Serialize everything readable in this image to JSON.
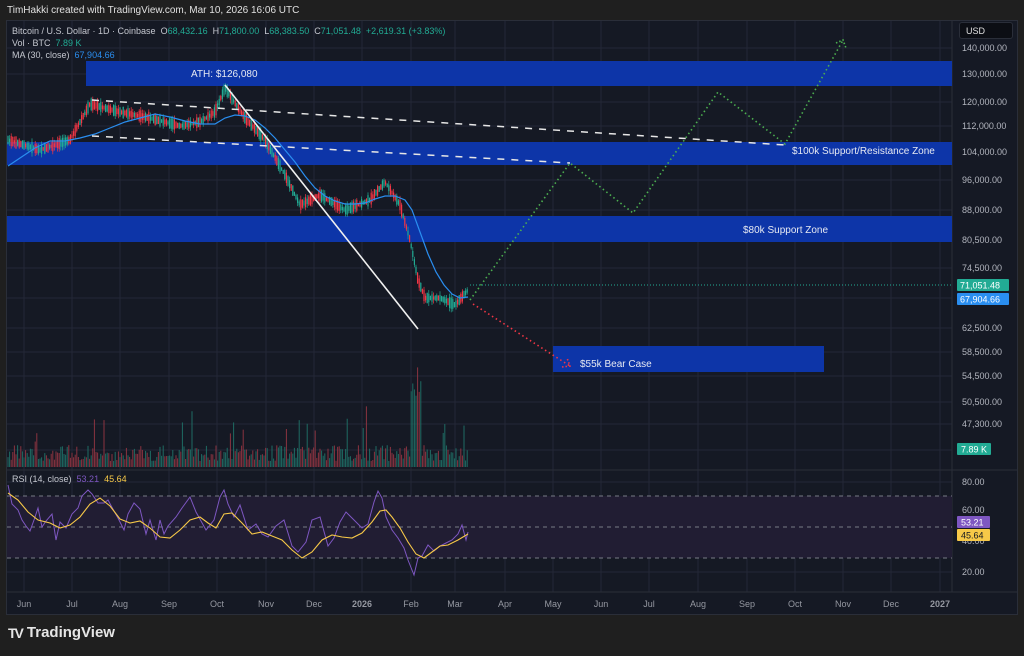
{
  "credit": "TimHakki created with TradingView.com, Mar 10, 2026 16:06 UTC",
  "legend": {
    "symbol": "Bitcoin / U.S. Dollar · 1D · Coinbase",
    "o_label": "O",
    "o": "68,432.16",
    "h_label": "H",
    "h": "71,800.00",
    "l_label": "L",
    "l": "68,383.50",
    "c_label": "C",
    "c": "71,051.48",
    "change": "+2,619.31 (+3.83%)",
    "vol_label": "Vol · BTC",
    "vol": "7.89 K",
    "ma_label": "MA (30, close)",
    "ma": "67,904.66"
  },
  "rsi_legend": {
    "label": "RSI (14, close)",
    "rsi": "53.21",
    "rsi_ma": "45.64"
  },
  "currency_button": "USD",
  "price_badges": {
    "close": "71,051.48",
    "ma": "67,904.66",
    "vol": "7.89 K",
    "rsi": "53.21",
    "rsi_ma": "45.64"
  },
  "colors": {
    "background": "#151924",
    "zone": "#0d35a8",
    "up": "#22ab94",
    "down": "#f23645",
    "ma": "#2a8ef0",
    "rsi": "#7e57c2",
    "rsi_ma": "#f7c948",
    "projection_bull": "#4caf50",
    "projection_bear": "#f23645"
  },
  "brand": "TradingView",
  "chart_data": {
    "type": "line",
    "title": "Bitcoin / U.S. Dollar · 1D · Coinbase",
    "y_ticks": [
      "140,000.00",
      "130,000.00",
      "120,000.00",
      "112,000.00",
      "104,000.00",
      "96,000.00",
      "88,000.00",
      "80,500.00",
      "74,500.00",
      "62,500.00",
      "58,500.00",
      "54,500.00",
      "50,500.00",
      "47,300.00"
    ],
    "rsi_ticks": [
      "80.00",
      "60.00",
      "40.00",
      "20.00"
    ],
    "x_ticks": [
      "Jun",
      "Jul",
      "Aug",
      "Sep",
      "Oct",
      "Nov",
      "Dec",
      "2026",
      "Feb",
      "Mar",
      "Apr",
      "May",
      "Jun",
      "Jul",
      "Aug",
      "Sep",
      "Oct",
      "Nov",
      "Dec",
      "2027"
    ],
    "annotations": [
      {
        "text": "ATH: $126,080",
        "type": "zone",
        "price_range": [
          126000,
          135000
        ]
      },
      {
        "text": "$100k Support/Resistance Zone",
        "type": "zone",
        "price_range": [
          100000,
          106500
        ]
      },
      {
        "text": "$80k Support Zone",
        "type": "zone",
        "price_range": [
          80500,
          86000
        ]
      },
      {
        "text": "$55k Bear Case",
        "type": "zone",
        "price_range": [
          55000,
          59500
        ]
      }
    ],
    "price_path_approx": {
      "x": [
        "Jun",
        "Jul",
        "Aug",
        "Sep",
        "Oct 6",
        "Oct",
        "Nov",
        "Dec",
        "Jan",
        "Feb",
        "Mar 10"
      ],
      "close": [
        104000,
        108000,
        118000,
        110000,
        126080,
        112000,
        95000,
        88000,
        92000,
        70000,
        71051
      ]
    },
    "projection_bull": {
      "x": [
        "Mar",
        "May",
        "Jun",
        "Aug",
        "Sep",
        "Nov"
      ],
      "y": [
        68000,
        101000,
        88000,
        124000,
        106000,
        145000
      ]
    },
    "projection_bear": {
      "x": [
        "Mar",
        "May"
      ],
      "y": [
        68000,
        55500
      ]
    },
    "ma30_last": 67904.66,
    "volume_last_k": 7.89,
    "rsi_last": 53.21,
    "rsi_ma_last": 45.64,
    "rsi_bands": [
      70,
      50,
      30
    ]
  }
}
